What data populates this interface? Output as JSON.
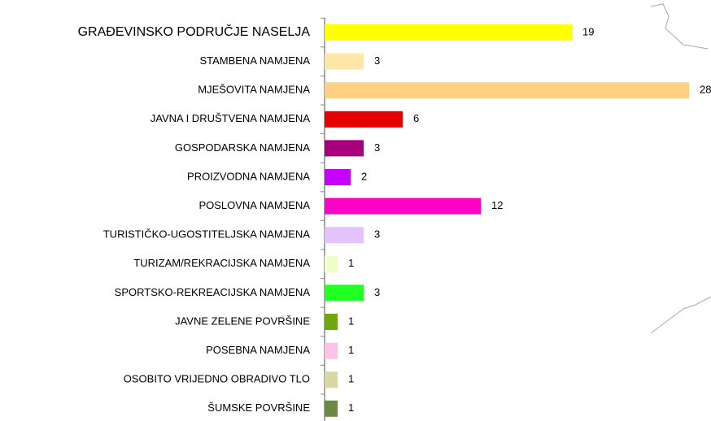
{
  "chart_data": {
    "type": "bar",
    "orientation": "horizontal",
    "categories": [
      "GRAĐEVINSKO PODRUČJE NASELJA",
      "STAMBENA NAMJENA",
      "MJEŠOVITA NAMJENA",
      "JAVNA I DRUŠTVENA NAMJENA",
      "GOSPODARSKA NAMJENA",
      "PROIZVODNA NAMJENA",
      "POSLOVNA NAMJENA",
      "TURISTIČKO-UGOSTITELJSKA NAMJENA",
      "TURIZAM/REKRACIJSKA NAMJENA",
      "SPORTSKO-REKREACIJSKA NAMJENA",
      "JAVNE ZELENE POVRŠINE",
      "POSEBNA NAMJENA",
      "OSOBITO VRIJEDNO OBRADIVO TLO",
      "ŠUMSKE POVRŠINE"
    ],
    "values": [
      19,
      3,
      28,
      6,
      3,
      2,
      12,
      3,
      1,
      3,
      1,
      1,
      1,
      1
    ],
    "colors": [
      "#ffff00",
      "#ffe6aa",
      "#ffd083",
      "#e60000",
      "#a8007d",
      "#c800ff",
      "#ff00c4",
      "#e4c2ff",
      "#eeffcc",
      "#22ff22",
      "#6fa80a",
      "#ffc2e6",
      "#d9d7a2",
      "#6e8a42"
    ]
  }
}
